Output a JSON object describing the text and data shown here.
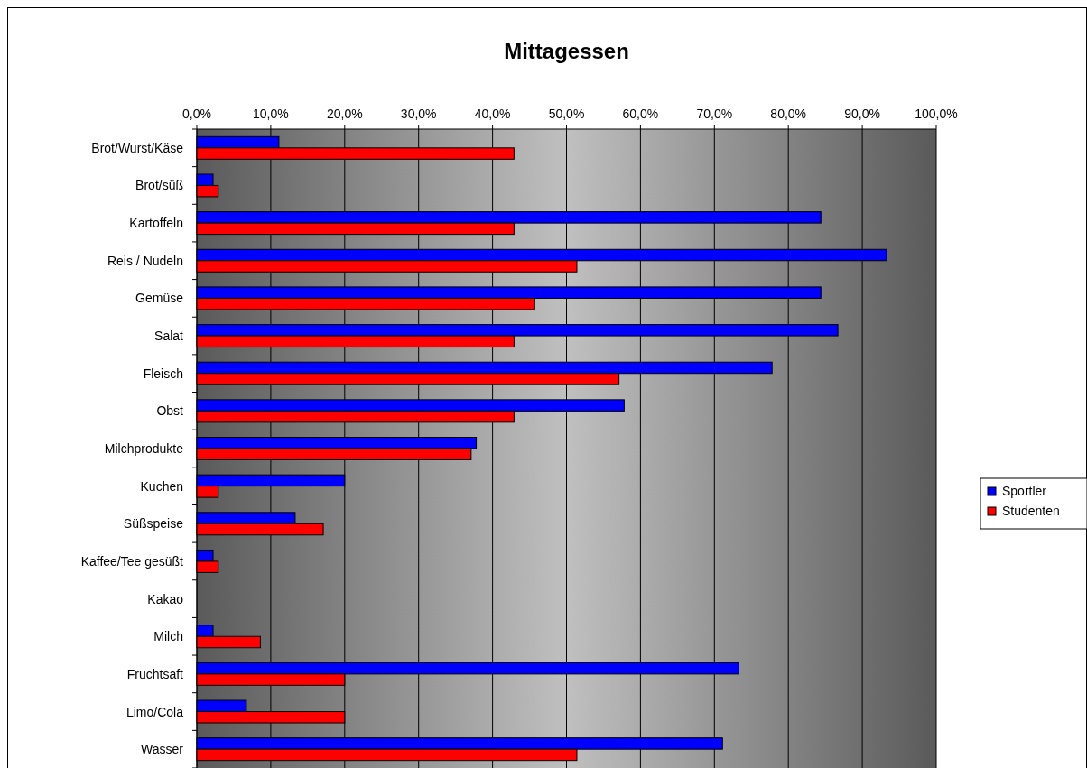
{
  "chart_data": {
    "type": "bar",
    "orientation": "horizontal",
    "title": "Mittagessen",
    "categories": [
      "Brot/Wurst/Käse",
      "Brot/süß",
      "Kartoffeln",
      "Reis / Nudeln",
      "Gemüse",
      "Salat",
      "Fleisch",
      "Obst",
      "Milchprodukte",
      "Kuchen",
      "Süßspeise",
      "Kaffee/Tee gesüßt",
      "Kakao",
      "Milch",
      "Fruchtsaft",
      "Limo/Cola",
      "Wasser"
    ],
    "series": [
      {
        "name": "Sportler",
        "color": "#0000ff",
        "values": [
          11.1,
          2.2,
          84.4,
          93.3,
          84.4,
          86.7,
          77.8,
          57.8,
          37.8,
          20.0,
          13.3,
          2.2,
          0,
          2.2,
          73.3,
          6.7,
          71.1
        ]
      },
      {
        "name": "Studenten",
        "color": "#ff0000",
        "values": [
          42.9,
          2.9,
          42.9,
          51.4,
          45.7,
          42.9,
          57.1,
          42.9,
          37.1,
          2.9,
          17.1,
          2.9,
          0,
          8.6,
          20.0,
          20.0,
          51.4
        ]
      }
    ],
    "xlim": [
      0,
      100
    ],
    "xticks": [
      {
        "value": 0,
        "label": "0,0%"
      },
      {
        "value": 10,
        "label": "10,0%"
      },
      {
        "value": 20,
        "label": "20,0%"
      },
      {
        "value": 30,
        "label": "30,0%"
      },
      {
        "value": 40,
        "label": "40,0%"
      },
      {
        "value": 50,
        "label": "50,0%"
      },
      {
        "value": 60,
        "label": "60,0%"
      },
      {
        "value": 70,
        "label": "70,0%"
      },
      {
        "value": 80,
        "label": "80,0%"
      },
      {
        "value": 90,
        "label": "90,0%"
      },
      {
        "value": 100,
        "label": "100,0%"
      }
    ],
    "grid": "x",
    "legend": "right"
  }
}
